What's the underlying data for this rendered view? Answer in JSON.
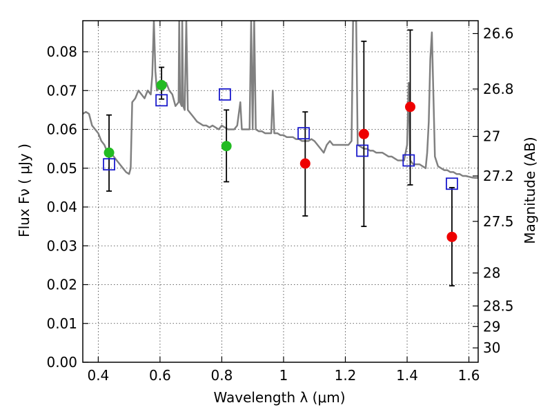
{
  "chart_data": {
    "type": "scatter",
    "xlabel": "Wavelength  λ (μm)",
    "ylabel": "Flux  Fν  ( μJy )",
    "y2label": "Magnitude (AB)",
    "xlim": [
      0.35,
      1.63
    ],
    "ylim": [
      0.0,
      0.088
    ],
    "grid": true,
    "x_ticks": [
      0.4,
      0.6,
      0.8,
      1.0,
      1.2,
      1.4,
      1.6
    ],
    "x_tick_labels": [
      "0.4",
      "0.6",
      "0.8",
      "1",
      "1.2",
      "1.4",
      "1.6"
    ],
    "y_ticks": [
      0.0,
      0.01,
      0.02,
      0.03,
      0.04,
      0.05,
      0.06,
      0.07,
      0.08
    ],
    "y_tick_labels": [
      "0.00",
      "0.01",
      "0.02",
      "0.03",
      "0.04",
      "0.05",
      "0.06",
      "0.07",
      "0.08"
    ],
    "y2_ticks": [
      {
        "label": "26.6",
        "flux": 0.0847
      },
      {
        "label": "26.8",
        "flux": 0.0704
      },
      {
        "label": "27",
        "flux": 0.0582
      },
      {
        "label": "27.2",
        "flux": 0.048
      },
      {
        "label": "27.5",
        "flux": 0.0363
      },
      {
        "label": "28",
        "flux": 0.023
      },
      {
        "label": "28.5",
        "flux": 0.0145
      },
      {
        "label": "29",
        "flux": 0.0092
      },
      {
        "label": "30",
        "flux": 0.0037
      }
    ],
    "series": [
      {
        "color": "#808080",
        "kind": "line",
        "points": [
          [
            0.35,
            0.064
          ],
          [
            0.36,
            0.0645
          ],
          [
            0.37,
            0.064
          ],
          [
            0.38,
            0.061
          ],
          [
            0.39,
            0.06
          ],
          [
            0.4,
            0.059
          ],
          [
            0.41,
            0.057
          ],
          [
            0.42,
            0.056
          ],
          [
            0.43,
            0.054
          ],
          [
            0.44,
            0.054
          ],
          [
            0.45,
            0.053
          ],
          [
            0.46,
            0.052
          ],
          [
            0.47,
            0.051
          ],
          [
            0.48,
            0.05
          ],
          [
            0.49,
            0.049
          ],
          [
            0.5,
            0.0485
          ],
          [
            0.505,
            0.05
          ],
          [
            0.51,
            0.067
          ],
          [
            0.52,
            0.068
          ],
          [
            0.53,
            0.07
          ],
          [
            0.54,
            0.069
          ],
          [
            0.55,
            0.068
          ],
          [
            0.56,
            0.07
          ],
          [
            0.57,
            0.069
          ],
          [
            0.575,
            0.074
          ],
          [
            0.58,
            0.088
          ],
          [
            0.585,
            0.075
          ],
          [
            0.59,
            0.07
          ],
          [
            0.6,
            0.071
          ],
          [
            0.61,
            0.07
          ],
          [
            0.62,
            0.072
          ],
          [
            0.63,
            0.07
          ],
          [
            0.64,
            0.069
          ],
          [
            0.65,
            0.066
          ],
          [
            0.66,
            0.067
          ],
          [
            0.662,
            0.088
          ],
          [
            0.665,
            0.067
          ],
          [
            0.67,
            0.066
          ],
          [
            0.672,
            0.088
          ],
          [
            0.675,
            0.066
          ],
          [
            0.68,
            0.065
          ],
          [
            0.685,
            0.088
          ],
          [
            0.69,
            0.065
          ],
          [
            0.7,
            0.064
          ],
          [
            0.71,
            0.063
          ],
          [
            0.72,
            0.062
          ],
          [
            0.73,
            0.0615
          ],
          [
            0.74,
            0.061
          ],
          [
            0.75,
            0.061
          ],
          [
            0.76,
            0.0605
          ],
          [
            0.77,
            0.061
          ],
          [
            0.78,
            0.0605
          ],
          [
            0.79,
            0.06
          ],
          [
            0.8,
            0.061
          ],
          [
            0.81,
            0.0605
          ],
          [
            0.82,
            0.06
          ],
          [
            0.83,
            0.06
          ],
          [
            0.84,
            0.06
          ],
          [
            0.85,
            0.061
          ],
          [
            0.86,
            0.067
          ],
          [
            0.865,
            0.06
          ],
          [
            0.87,
            0.06
          ],
          [
            0.88,
            0.06
          ],
          [
            0.89,
            0.06
          ],
          [
            0.895,
            0.088
          ],
          [
            0.9,
            0.06
          ],
          [
            0.905,
            0.088
          ],
          [
            0.91,
            0.06
          ],
          [
            0.92,
            0.0595
          ],
          [
            0.93,
            0.0595
          ],
          [
            0.94,
            0.059
          ],
          [
            0.95,
            0.059
          ],
          [
            0.96,
            0.059
          ],
          [
            0.965,
            0.07
          ],
          [
            0.97,
            0.059
          ],
          [
            0.98,
            0.059
          ],
          [
            0.99,
            0.0585
          ],
          [
            1.0,
            0.0585
          ],
          [
            1.01,
            0.058
          ],
          [
            1.02,
            0.058
          ],
          [
            1.03,
            0.058
          ],
          [
            1.04,
            0.0575
          ],
          [
            1.05,
            0.0575
          ],
          [
            1.06,
            0.057
          ],
          [
            1.07,
            0.057
          ],
          [
            1.08,
            0.057
          ],
          [
            1.09,
            0.0575
          ],
          [
            1.1,
            0.057
          ],
          [
            1.11,
            0.056
          ],
          [
            1.12,
            0.055
          ],
          [
            1.13,
            0.054
          ],
          [
            1.14,
            0.056
          ],
          [
            1.15,
            0.057
          ],
          [
            1.16,
            0.056
          ],
          [
            1.17,
            0.056
          ],
          [
            1.18,
            0.056
          ],
          [
            1.19,
            0.056
          ],
          [
            1.2,
            0.056
          ],
          [
            1.21,
            0.056
          ],
          [
            1.22,
            0.057
          ],
          [
            1.225,
            0.088
          ],
          [
            1.235,
            0.088
          ],
          [
            1.24,
            0.056
          ],
          [
            1.25,
            0.0555
          ],
          [
            1.26,
            0.055
          ],
          [
            1.27,
            0.055
          ],
          [
            1.28,
            0.0545
          ],
          [
            1.29,
            0.0545
          ],
          [
            1.3,
            0.054
          ],
          [
            1.31,
            0.054
          ],
          [
            1.32,
            0.054
          ],
          [
            1.33,
            0.0535
          ],
          [
            1.34,
            0.053
          ],
          [
            1.35,
            0.053
          ],
          [
            1.36,
            0.0525
          ],
          [
            1.37,
            0.052
          ],
          [
            1.38,
            0.052
          ],
          [
            1.39,
            0.052
          ],
          [
            1.4,
            0.056
          ],
          [
            1.405,
            0.072
          ],
          [
            1.41,
            0.052
          ],
          [
            1.42,
            0.051
          ],
          [
            1.43,
            0.051
          ],
          [
            1.44,
            0.051
          ],
          [
            1.45,
            0.0505
          ],
          [
            1.46,
            0.05
          ],
          [
            1.465,
            0.054
          ],
          [
            1.47,
            0.062
          ],
          [
            1.475,
            0.078
          ],
          [
            1.48,
            0.085
          ],
          [
            1.485,
            0.069
          ],
          [
            1.49,
            0.053
          ],
          [
            1.5,
            0.0505
          ],
          [
            1.51,
            0.05
          ],
          [
            1.52,
            0.0495
          ],
          [
            1.53,
            0.0495
          ],
          [
            1.54,
            0.049
          ],
          [
            1.55,
            0.049
          ],
          [
            1.56,
            0.0485
          ],
          [
            1.57,
            0.0485
          ],
          [
            1.58,
            0.048
          ],
          [
            1.59,
            0.048
          ],
          [
            1.6,
            0.0478
          ],
          [
            1.61,
            0.0476
          ],
          [
            1.62,
            0.0475
          ],
          [
            1.63,
            0.0475
          ]
        ]
      },
      {
        "color": "#1a1acc",
        "kind": "open-square",
        "points": [
          [
            0.435,
            0.051
          ],
          [
            0.605,
            0.0675
          ],
          [
            0.81,
            0.069
          ],
          [
            1.065,
            0.059
          ],
          [
            1.255,
            0.0545
          ],
          [
            1.405,
            0.052
          ],
          [
            1.545,
            0.046
          ]
        ]
      },
      {
        "color": "#22bb22",
        "kind": "filled-circle",
        "points": [
          {
            "x": 0.435,
            "y": 0.054,
            "yerr_low": 0.0441,
            "yerr_high": 0.0637
          },
          {
            "x": 0.605,
            "y": 0.0714,
            "yerr_low": 0.0678,
            "yerr_high": 0.076
          },
          {
            "x": 0.815,
            "y": 0.0557,
            "yerr_low": 0.0465,
            "yerr_high": 0.065
          }
        ]
      },
      {
        "color": "#ee0000",
        "kind": "filled-circle",
        "points": [
          {
            "x": 1.07,
            "y": 0.0512,
            "yerr_low": 0.0377,
            "yerr_high": 0.0645
          },
          {
            "x": 1.26,
            "y": 0.0588,
            "yerr_low": 0.035,
            "yerr_high": 0.0827
          },
          {
            "x": 1.41,
            "y": 0.0658,
            "yerr_low": 0.0457,
            "yerr_high": 0.0856
          },
          {
            "x": 1.545,
            "y": 0.0323,
            "yerr_low": 0.0197,
            "yerr_high": 0.045
          }
        ]
      }
    ]
  }
}
